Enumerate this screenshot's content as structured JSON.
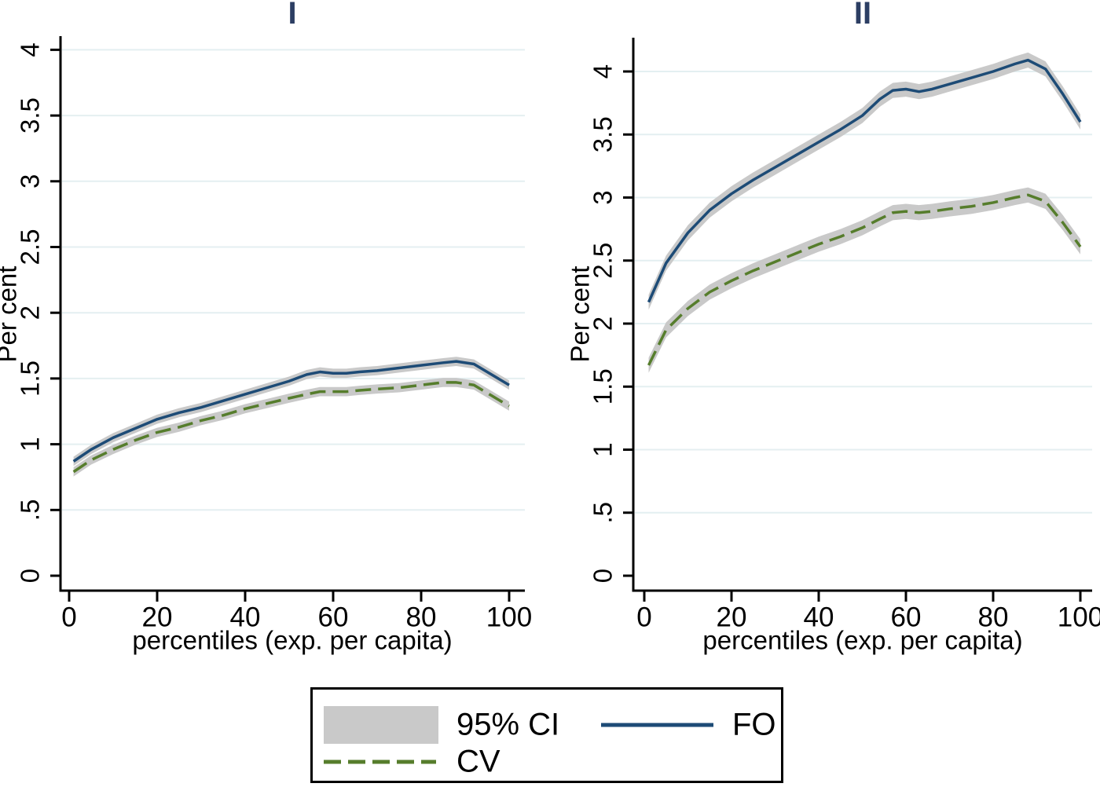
{
  "figure": {
    "background": "#ffffff",
    "colors": {
      "fo_line": "#1d4b76",
      "cv_line": "#567d2c",
      "ci_band": "#c9c9c9",
      "gridline": "#e4eff1",
      "panel_title": "#2c3e63",
      "axis": "#000000"
    }
  },
  "chart_data": [
    {
      "type": "line",
      "title": "I",
      "xlabel": "percentiles (exp. per capita)",
      "ylabel": "Per cent",
      "grid": true,
      "legend_position": "bottom-shared",
      "xlim": [
        0,
        100
      ],
      "ylim": [
        0,
        4.12
      ],
      "x_ticks": [
        0,
        20,
        40,
        60,
        80,
        100
      ],
      "y_ticks": [
        0,
        0.5,
        1,
        1.5,
        2,
        2.5,
        3,
        3.5,
        4
      ],
      "y_tick_labels": [
        "0",
        ".5",
        "1",
        "1.5",
        "2",
        "2.5",
        "3",
        "3.5",
        "4"
      ],
      "x": [
        1,
        5,
        10,
        15,
        20,
        25,
        30,
        35,
        40,
        45,
        50,
        54,
        57,
        60,
        63,
        66,
        70,
        75,
        80,
        85,
        88,
        92,
        96,
        100
      ],
      "series": [
        {
          "name": "FO",
          "style": "solid",
          "color": "#1d4b76",
          "ci_halfwidth": 0.035,
          "values": [
            0.87,
            0.96,
            1.05,
            1.12,
            1.19,
            1.24,
            1.28,
            1.33,
            1.38,
            1.43,
            1.48,
            1.53,
            1.55,
            1.54,
            1.54,
            1.55,
            1.56,
            1.58,
            1.6,
            1.62,
            1.63,
            1.61,
            1.53,
            1.45
          ]
        },
        {
          "name": "CV",
          "style": "dashed",
          "color": "#567d2c",
          "ci_halfwidth": 0.035,
          "values": [
            0.79,
            0.88,
            0.96,
            1.03,
            1.09,
            1.13,
            1.18,
            1.22,
            1.27,
            1.31,
            1.35,
            1.38,
            1.4,
            1.4,
            1.4,
            1.41,
            1.42,
            1.43,
            1.45,
            1.47,
            1.47,
            1.45,
            1.37,
            1.29
          ]
        }
      ]
    },
    {
      "type": "line",
      "title": "II",
      "xlabel": "percentiles (exp. per capita)",
      "ylabel": "Per cent",
      "grid": true,
      "legend_position": "bottom-shared",
      "xlim": [
        0,
        100
      ],
      "ylim": [
        0,
        4.27
      ],
      "x_ticks": [
        0,
        20,
        40,
        60,
        80,
        100
      ],
      "y_ticks": [
        0,
        0.5,
        1,
        1.5,
        2,
        2.5,
        3,
        3.5,
        4
      ],
      "y_tick_labels": [
        "0",
        ".5",
        "1",
        "1.5",
        "2",
        "2.5",
        "3",
        "3.5",
        "4"
      ],
      "x": [
        1,
        5,
        10,
        15,
        20,
        25,
        30,
        35,
        40,
        45,
        50,
        54,
        57,
        60,
        63,
        66,
        70,
        75,
        80,
        85,
        88,
        92,
        96,
        100
      ],
      "series": [
        {
          "name": "FO",
          "style": "solid",
          "color": "#1d4b76",
          "ci_halfwidth": 0.06,
          "values": [
            2.17,
            2.48,
            2.72,
            2.9,
            3.03,
            3.14,
            3.24,
            3.34,
            3.44,
            3.54,
            3.65,
            3.78,
            3.85,
            3.86,
            3.84,
            3.86,
            3.9,
            3.95,
            4.0,
            4.06,
            4.09,
            4.02,
            3.82,
            3.6
          ]
        },
        {
          "name": "CV",
          "style": "dashed",
          "color": "#567d2c",
          "ci_halfwidth": 0.06,
          "values": [
            1.67,
            1.95,
            2.12,
            2.25,
            2.34,
            2.42,
            2.49,
            2.56,
            2.63,
            2.69,
            2.76,
            2.83,
            2.88,
            2.89,
            2.88,
            2.89,
            2.91,
            2.93,
            2.96,
            3.0,
            3.02,
            2.97,
            2.8,
            2.61
          ]
        }
      ]
    }
  ],
  "legend": {
    "items": [
      {
        "swatch": "ci-band",
        "label": "95% CI"
      },
      {
        "swatch": "line-solid",
        "label": "FO"
      },
      {
        "swatch": "line-dashed",
        "label": "CV"
      }
    ]
  }
}
